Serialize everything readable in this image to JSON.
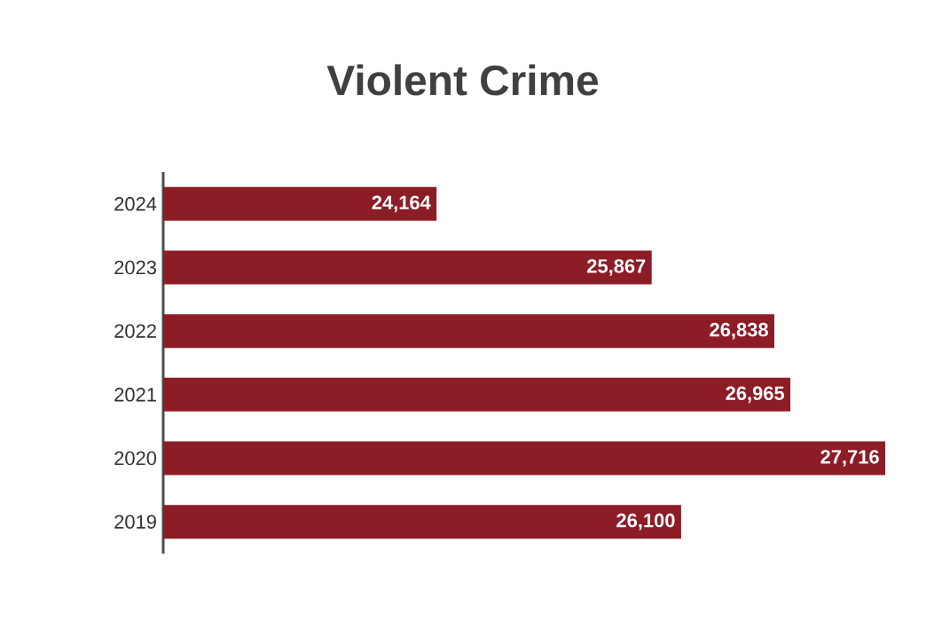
{
  "chart_data": {
    "type": "bar",
    "orientation": "horizontal",
    "title": "Violent Crime",
    "categories": [
      "2024",
      "2023",
      "2022",
      "2021",
      "2020",
      "2019"
    ],
    "values": [
      24164,
      25867,
      26838,
      26965,
      27716,
      26100
    ],
    "value_labels": [
      "24,164",
      "25,867",
      "26,838",
      "26,965",
      "27,716",
      "26,100"
    ],
    "color": "#8c1c26",
    "xlim": [
      22000,
      27716
    ]
  }
}
